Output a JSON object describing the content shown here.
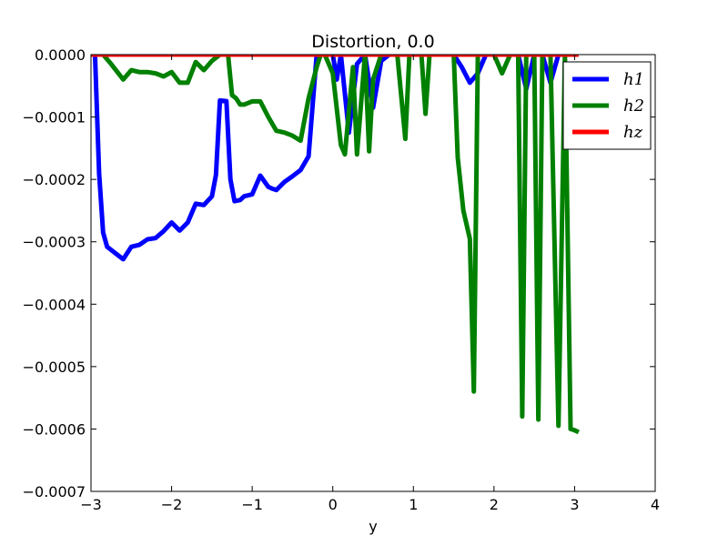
{
  "chart_data": {
    "type": "line",
    "title": "Distortion, 0.0",
    "xlabel": "y",
    "ylabel": "",
    "xlim": [
      -3,
      4
    ],
    "ylim": [
      -0.0007,
      0.0
    ],
    "grid": false,
    "legend_position": "top-right",
    "xticks": [
      {
        "value": -3,
        "label": "−3"
      },
      {
        "value": -2,
        "label": "−2"
      },
      {
        "value": -1,
        "label": "−1"
      },
      {
        "value": 0,
        "label": "0"
      },
      {
        "value": 1,
        "label": "1"
      },
      {
        "value": 2,
        "label": "2"
      },
      {
        "value": 3,
        "label": "3"
      },
      {
        "value": 4,
        "label": "4"
      }
    ],
    "yticks": [
      {
        "value": 0.0,
        "label": "0.0000"
      },
      {
        "value": -0.0001,
        "label": "−0.0001"
      },
      {
        "value": -0.0002,
        "label": "−0.0002"
      },
      {
        "value": -0.0003,
        "label": "−0.0003"
      },
      {
        "value": -0.0004,
        "label": "−0.0004"
      },
      {
        "value": -0.0005,
        "label": "−0.0005"
      },
      {
        "value": -0.0006,
        "label": "−0.0006"
      },
      {
        "value": -0.0007,
        "label": "−0.0007"
      }
    ],
    "series": [
      {
        "name": "h1",
        "color": "#0000ff",
        "x": [
          -2.95,
          -2.9,
          -2.85,
          -2.8,
          -2.7,
          -2.6,
          -2.5,
          -2.4,
          -2.3,
          -2.2,
          -2.1,
          -2.0,
          -1.9,
          -1.8,
          -1.7,
          -1.6,
          -1.5,
          -1.45,
          -1.4,
          -1.32,
          -1.27,
          -1.22,
          -1.15,
          -1.1,
          -1.0,
          -0.9,
          -0.8,
          -0.75,
          -0.7,
          -0.6,
          -0.5,
          -0.4,
          -0.3,
          -0.25,
          -0.2,
          -0.1,
          0.0,
          0.05,
          0.1,
          0.2,
          0.3,
          0.4,
          0.5,
          0.6,
          0.7,
          0.8,
          0.9,
          1.0,
          1.1,
          1.2,
          1.3,
          1.4,
          1.5,
          1.6,
          1.7,
          1.8,
          1.9,
          2.0,
          2.1,
          2.2,
          2.3,
          2.4,
          2.5,
          2.6,
          2.7,
          2.8,
          2.9,
          3.0
        ],
        "values": [
          0.0,
          -0.00019,
          -0.000285,
          -0.000308,
          -0.000318,
          -0.000328,
          -0.000308,
          -0.000305,
          -0.000296,
          -0.000294,
          -0.000283,
          -0.000269,
          -0.000282,
          -0.000269,
          -0.000239,
          -0.000241,
          -0.000227,
          -0.000193,
          -7.35e-05,
          -7.45e-05,
          -0.0002,
          -0.000235,
          -0.000233,
          -0.000227,
          -0.000224,
          -0.000194,
          -0.000212,
          -0.000215,
          -0.000217,
          -0.000204,
          -0.000195,
          -0.000185,
          -0.000163,
          -8e-05,
          0.0,
          0.0,
          0.0,
          -4e-05,
          0.0,
          -0.000125,
          -1.5e-05,
          0.0,
          -8.5e-05,
          -1e-05,
          0.0,
          0.0,
          0.0,
          0.0,
          0.0,
          0.0,
          0.0,
          0.0,
          0.0,
          -2e-05,
          -4.5e-05,
          -3e-05,
          0.0,
          0.0,
          0.0,
          0.0,
          0.0,
          -5.5e-05,
          0.0,
          0.0,
          -4.5e-05,
          0.0,
          0.0,
          0.0
        ]
      },
      {
        "name": "h2",
        "color": "#008000",
        "x": [
          -2.95,
          -2.85,
          -2.75,
          -2.6,
          -2.5,
          -2.4,
          -2.3,
          -2.2,
          -2.1,
          -2.0,
          -1.9,
          -1.8,
          -1.7,
          -1.6,
          -1.5,
          -1.4,
          -1.3,
          -1.25,
          -1.2,
          -1.15,
          -1.1,
          -1.0,
          -0.9,
          -0.8,
          -0.7,
          -0.6,
          -0.5,
          -0.4,
          -0.3,
          -0.2,
          -0.15,
          -0.1,
          0.0,
          0.1,
          0.15,
          0.25,
          0.3,
          0.4,
          0.45,
          0.5,
          0.6,
          0.7,
          0.8,
          0.9,
          0.95,
          1.0,
          1.1,
          1.15,
          1.2,
          1.3,
          1.4,
          1.5,
          1.55,
          1.62,
          1.7,
          1.75,
          1.8,
          1.9,
          2.0,
          2.1,
          2.2,
          2.3,
          2.35,
          2.4,
          2.5,
          2.55,
          2.6,
          2.65,
          2.7,
          2.8,
          2.88,
          2.95,
          3.0,
          3.05
        ],
        "values": [
          0.0,
          0.0,
          -1.5e-05,
          -4e-05,
          -2.5e-05,
          -2.8e-05,
          -2.8e-05,
          -3e-05,
          -3.5e-05,
          -2.8e-05,
          -4.5e-05,
          -4.5e-05,
          -1.2e-05,
          -2.5e-05,
          -1e-05,
          0.0,
          0.0,
          -6.5e-05,
          -7e-05,
          -8e-05,
          -8e-05,
          -7.5e-05,
          -7.5e-05,
          -0.0001,
          -0.000122,
          -0.000125,
          -0.00013,
          -0.000138,
          -7e-05,
          -2e-05,
          0.0,
          0.0,
          -3e-05,
          -0.000145,
          -0.00016,
          -2e-05,
          -0.00016,
          0.0,
          -0.000155,
          -4e-05,
          0.0,
          0.0,
          0.0,
          -0.000135,
          0.0,
          0.0,
          0.0,
          -9.5e-05,
          0.0,
          0.0,
          0.0,
          0.0,
          -0.000165,
          -0.00025,
          -0.000295,
          -0.00054,
          0.0,
          0.0,
          0.0,
          -3e-05,
          0.0,
          0.0,
          -0.00058,
          0.0,
          0.0,
          -0.000585,
          0.0,
          0.0,
          0.0,
          -0.000595,
          0.0,
          -0.0006,
          -0.000602,
          -0.000605
        ]
      },
      {
        "name": "hz",
        "color": "#ff0000",
        "x": [
          -3.0,
          3.05
        ],
        "values": [
          0.0,
          0.0
        ]
      }
    ],
    "legend": [
      {
        "label": "h1",
        "color": "#0000ff"
      },
      {
        "label": "h2",
        "color": "#008000"
      },
      {
        "label": "hz",
        "color": "#ff0000"
      }
    ]
  }
}
